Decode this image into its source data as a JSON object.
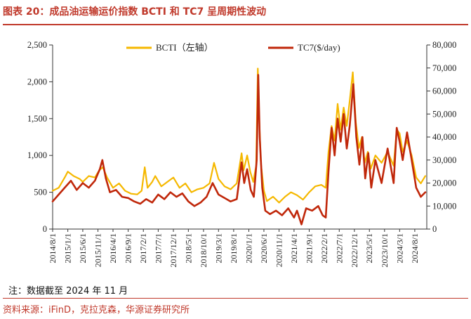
{
  "title": "图表 20：成品油运输运价指数 BCTI 和 TC7 呈周期性波动",
  "note": "注：数据截至 2024 年 11 月",
  "source": "资料来源：iFinD，克拉克森，华源证券研究所",
  "colors": {
    "title": "#c0392b",
    "bcti": "#f5b800",
    "tc7": "#c0270a",
    "axis": "#333333"
  },
  "chart_data": {
    "type": "line",
    "title": "",
    "xlabel": "",
    "ylabel_left": "",
    "ylabel_right": "",
    "x_range": [
      "2014-08-01",
      "2024-11-30"
    ],
    "ylim_left": [
      0,
      2500
    ],
    "ylim_right": [
      0,
      80000
    ],
    "yticks_left": [
      "0",
      "500",
      "1,000",
      "1,500",
      "2,000",
      "2,500"
    ],
    "yticks_right": [
      "0",
      "10,000",
      "20,000",
      "30,000",
      "40,000",
      "50,000",
      "60,000",
      "70,000",
      "80,000"
    ],
    "xticks": [
      "2014/8/1",
      "2015/1/1",
      "2015/6/1",
      "2015/11/1",
      "2016/4/1",
      "2016/9/1",
      "2017/2/1",
      "2017/7/1",
      "2017/12/1",
      "2018/5/1",
      "2018/10/1",
      "2019/3/1",
      "2019/8/1",
      "2020/1/1",
      "2020/6/1",
      "2020/11/1",
      "2021/4/1",
      "2021/9/1",
      "2022/2/1",
      "2022/7/1",
      "2022/12/1",
      "2023/5/1",
      "2023/10/1",
      "2024/3/1",
      "2024/8/1"
    ],
    "grid": false,
    "legend_position": "top",
    "series": [
      {
        "name": "BCTI（左轴）",
        "axis": "left",
        "points": [
          [
            "2014-08-01",
            520
          ],
          [
            "2014-10-01",
            560
          ],
          [
            "2014-12-01",
            700
          ],
          [
            "2015-01-01",
            780
          ],
          [
            "2015-03-01",
            720
          ],
          [
            "2015-05-01",
            680
          ],
          [
            "2015-06-01",
            640
          ],
          [
            "2015-08-01",
            720
          ],
          [
            "2015-10-01",
            700
          ],
          [
            "2015-11-15",
            800
          ],
          [
            "2015-12-20",
            840
          ],
          [
            "2016-02-01",
            700
          ],
          [
            "2016-04-01",
            560
          ],
          [
            "2016-06-01",
            620
          ],
          [
            "2016-08-01",
            520
          ],
          [
            "2016-10-01",
            480
          ],
          [
            "2016-12-01",
            470
          ],
          [
            "2017-01-15",
            520
          ],
          [
            "2017-02-15",
            840
          ],
          [
            "2017-03-15",
            560
          ],
          [
            "2017-05-01",
            640
          ],
          [
            "2017-06-01",
            720
          ],
          [
            "2017-08-01",
            580
          ],
          [
            "2017-10-01",
            640
          ],
          [
            "2017-12-01",
            700
          ],
          [
            "2018-02-01",
            560
          ],
          [
            "2018-04-01",
            620
          ],
          [
            "2018-06-01",
            500
          ],
          [
            "2018-08-01",
            540
          ],
          [
            "2018-10-01",
            560
          ],
          [
            "2018-12-01",
            620
          ],
          [
            "2019-01-15",
            900
          ],
          [
            "2019-03-01",
            680
          ],
          [
            "2019-05-01",
            580
          ],
          [
            "2019-07-01",
            540
          ],
          [
            "2019-09-01",
            620
          ],
          [
            "2019-10-20",
            1030
          ],
          [
            "2019-11-10",
            800
          ],
          [
            "2019-12-15",
            1000
          ],
          [
            "2020-01-15",
            780
          ],
          [
            "2020-02-15",
            640
          ],
          [
            "2020-03-15",
            860
          ],
          [
            "2020-04-01",
            2180
          ],
          [
            "2020-04-15",
            1500
          ],
          [
            "2020-05-01",
            900
          ],
          [
            "2020-06-01",
            520
          ],
          [
            "2020-07-01",
            380
          ],
          [
            "2020-09-01",
            440
          ],
          [
            "2020-11-01",
            360
          ],
          [
            "2021-01-01",
            440
          ],
          [
            "2021-03-01",
            500
          ],
          [
            "2021-05-01",
            460
          ],
          [
            "2021-07-01",
            400
          ],
          [
            "2021-09-01",
            500
          ],
          [
            "2021-11-01",
            580
          ],
          [
            "2022-01-01",
            600
          ],
          [
            "2022-02-15",
            560
          ],
          [
            "2022-03-15",
            1050
          ],
          [
            "2022-04-15",
            1400
          ],
          [
            "2022-05-15",
            1200
          ],
          [
            "2022-06-15",
            1700
          ],
          [
            "2022-07-15",
            1350
          ],
          [
            "2022-08-15",
            1650
          ],
          [
            "2022-09-15",
            1400
          ],
          [
            "2022-10-15",
            1750
          ],
          [
            "2022-11-15",
            2130
          ],
          [
            "2022-12-15",
            1450
          ],
          [
            "2023-01-15",
            1100
          ],
          [
            "2023-02-15",
            1250
          ],
          [
            "2023-03-15",
            900
          ],
          [
            "2023-04-15",
            1050
          ],
          [
            "2023-05-15",
            820
          ],
          [
            "2023-07-01",
            1000
          ],
          [
            "2023-09-01",
            900
          ],
          [
            "2023-11-01",
            1050
          ],
          [
            "2024-01-01",
            860
          ],
          [
            "2024-02-01",
            1350
          ],
          [
            "2024-03-01",
            1300
          ],
          [
            "2024-04-01",
            1050
          ],
          [
            "2024-05-15",
            1200
          ],
          [
            "2024-07-01",
            1000
          ],
          [
            "2024-08-15",
            700
          ],
          [
            "2024-10-01",
            620
          ],
          [
            "2024-11-15",
            720
          ]
        ]
      },
      {
        "name": "TC7($/day)",
        "axis": "right",
        "points": [
          [
            "2014-08-01",
            12000
          ],
          [
            "2014-10-01",
            15000
          ],
          [
            "2014-12-01",
            18000
          ],
          [
            "2015-02-01",
            21000
          ],
          [
            "2015-04-01",
            17000
          ],
          [
            "2015-06-01",
            20000
          ],
          [
            "2015-08-01",
            18000
          ],
          [
            "2015-10-01",
            21000
          ],
          [
            "2015-11-20",
            26000
          ],
          [
            "2015-12-15",
            30000
          ],
          [
            "2016-01-20",
            22000
          ],
          [
            "2016-03-01",
            16000
          ],
          [
            "2016-05-01",
            17000
          ],
          [
            "2016-07-01",
            14000
          ],
          [
            "2016-09-01",
            13500
          ],
          [
            "2016-11-01",
            12000
          ],
          [
            "2017-01-01",
            11000
          ],
          [
            "2017-03-01",
            13000
          ],
          [
            "2017-05-01",
            11500
          ],
          [
            "2017-07-01",
            15000
          ],
          [
            "2017-09-01",
            13000
          ],
          [
            "2017-11-01",
            16000
          ],
          [
            "2018-01-01",
            14000
          ],
          [
            "2018-03-01",
            15500
          ],
          [
            "2018-05-01",
            12000
          ],
          [
            "2018-07-01",
            10000
          ],
          [
            "2018-09-01",
            11500
          ],
          [
            "2018-11-01",
            14000
          ],
          [
            "2019-01-01",
            20000
          ],
          [
            "2019-03-01",
            15000
          ],
          [
            "2019-05-01",
            13500
          ],
          [
            "2019-07-01",
            12000
          ],
          [
            "2019-09-01",
            13000
          ],
          [
            "2019-10-20",
            29000
          ],
          [
            "2019-11-15",
            20000
          ],
          [
            "2019-12-15",
            26000
          ],
          [
            "2020-01-20",
            17000
          ],
          [
            "2020-02-20",
            14000
          ],
          [
            "2020-03-20",
            30000
          ],
          [
            "2020-04-05",
            67000
          ],
          [
            "2020-04-20",
            40000
          ],
          [
            "2020-05-15",
            18000
          ],
          [
            "2020-06-15",
            8000
          ],
          [
            "2020-08-01",
            6500
          ],
          [
            "2020-10-01",
            8000
          ],
          [
            "2020-12-01",
            6000
          ],
          [
            "2021-02-01",
            9000
          ],
          [
            "2021-04-01",
            5000
          ],
          [
            "2021-05-01",
            8000
          ],
          [
            "2021-06-15",
            2000
          ],
          [
            "2021-08-01",
            9000
          ],
          [
            "2021-10-01",
            8000
          ],
          [
            "2021-12-01",
            10000
          ],
          [
            "2022-01-15",
            6000
          ],
          [
            "2022-02-15",
            5000
          ],
          [
            "2022-03-15",
            25000
          ],
          [
            "2022-04-15",
            44000
          ],
          [
            "2022-05-15",
            32000
          ],
          [
            "2022-06-15",
            48000
          ],
          [
            "2022-07-15",
            38000
          ],
          [
            "2022-08-15",
            50000
          ],
          [
            "2022-09-15",
            35000
          ],
          [
            "2022-10-15",
            45000
          ],
          [
            "2022-11-20",
            63000
          ],
          [
            "2022-12-20",
            40000
          ],
          [
            "2023-01-20",
            28000
          ],
          [
            "2023-02-20",
            40000
          ],
          [
            "2023-03-20",
            22000
          ],
          [
            "2023-04-20",
            33000
          ],
          [
            "2023-05-20",
            18000
          ],
          [
            "2023-07-01",
            30000
          ],
          [
            "2023-09-01",
            20000
          ],
          [
            "2023-11-01",
            35000
          ],
          [
            "2024-01-01",
            20000
          ],
          [
            "2024-02-01",
            44000
          ],
          [
            "2024-03-01",
            38000
          ],
          [
            "2024-04-01",
            30000
          ],
          [
            "2024-05-15",
            42000
          ],
          [
            "2024-07-01",
            30000
          ],
          [
            "2024-08-15",
            18000
          ],
          [
            "2024-10-01",
            14000
          ],
          [
            "2024-11-15",
            16000
          ]
        ]
      }
    ]
  }
}
